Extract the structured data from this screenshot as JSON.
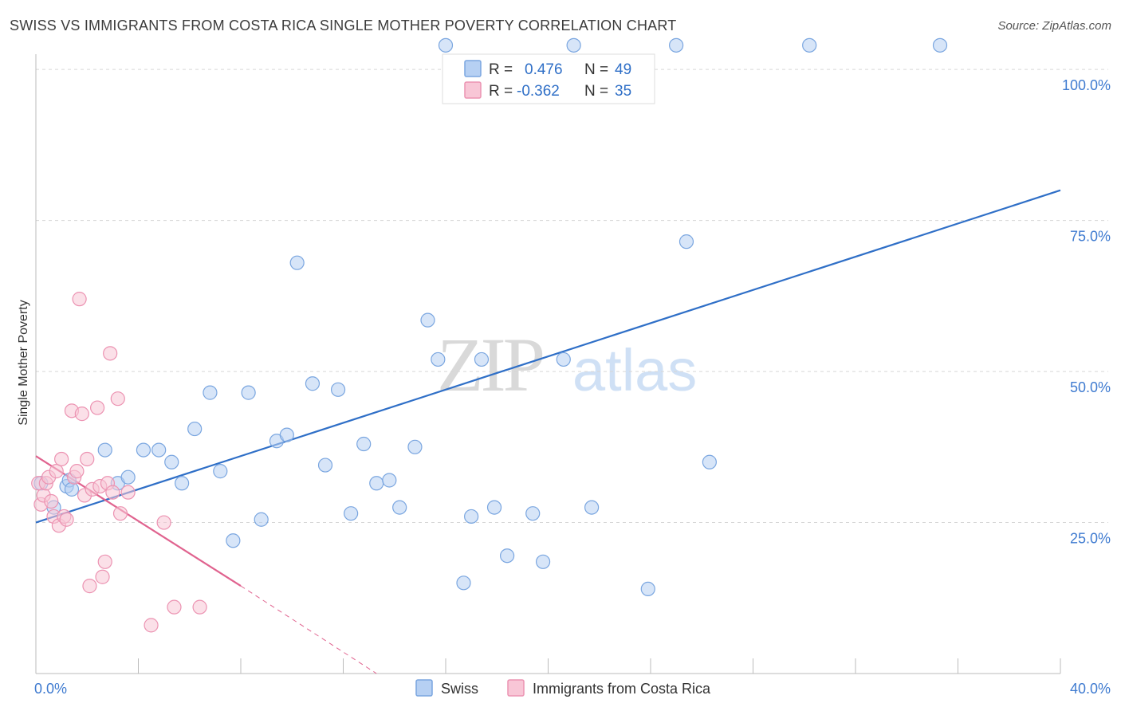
{
  "title": "SWISS VS IMMIGRANTS FROM COSTA RICA SINGLE MOTHER POVERTY CORRELATION CHART",
  "source": "Source: ZipAtlas.com",
  "watermark": {
    "zip": "ZIP",
    "atlas": "atlas"
  },
  "colors": {
    "swiss_fill": "#b6d0f3",
    "swiss_stroke": "#7aa6e0",
    "swiss_line": "#2f6fc7",
    "cr_fill": "#f8c6d6",
    "cr_stroke": "#ec93b2",
    "cr_line": "#e0638f",
    "tick": "#3f7bd0",
    "grid": "#d6d6d6"
  },
  "legend": {
    "rows": [
      {
        "r_label": "R = ",
        "r_value": "0.476",
        "n_label": "N = ",
        "n_value": "49"
      },
      {
        "r_label": "R = ",
        "r_value": "-0.362",
        "n_label": "N = ",
        "n_value": "35"
      }
    ]
  },
  "bottom_legend": [
    "Swiss",
    "Immigrants from Costa Rica"
  ],
  "chart_data": {
    "type": "scatter",
    "title": "SWISS VS IMMIGRANTS FROM COSTA RICA SINGLE MOTHER POVERTY CORRELATION CHART",
    "xlabel": "",
    "ylabel": "Single Mother Poverty",
    "xlim": [
      0,
      40
    ],
    "ylim": [
      0,
      102
    ],
    "x_tick_labels": [
      {
        "value": 0,
        "label": "0.0%"
      },
      {
        "value": 40,
        "label": "40.0%"
      }
    ],
    "x_minor_ticks": [
      0,
      4,
      8,
      12,
      16,
      20,
      24,
      28,
      32,
      36,
      40
    ],
    "y_tick_labels": [
      {
        "value": 25,
        "label": "25.0%"
      },
      {
        "value": 50,
        "label": "50.0%"
      },
      {
        "value": 75,
        "label": "75.0%"
      },
      {
        "value": 100,
        "label": "100.0%"
      }
    ],
    "grid": true,
    "series": [
      {
        "name": "Swiss",
        "points": [
          [
            0.2,
            31.5
          ],
          [
            0.7,
            27.5
          ],
          [
            1.2,
            31
          ],
          [
            1.3,
            32
          ],
          [
            1.4,
            30.5
          ],
          [
            2.7,
            37
          ],
          [
            3.2,
            31.5
          ],
          [
            3.6,
            32.5
          ],
          [
            4.2,
            37
          ],
          [
            4.8,
            37
          ],
          [
            5.3,
            35
          ],
          [
            5.7,
            31.5
          ],
          [
            6.2,
            40.5
          ],
          [
            6.8,
            46.5
          ],
          [
            7.2,
            33.5
          ],
          [
            7.7,
            22
          ],
          [
            8.3,
            46.5
          ],
          [
            8.8,
            25.5
          ],
          [
            9.4,
            38.5
          ],
          [
            9.8,
            39.5
          ],
          [
            10.2,
            68
          ],
          [
            10.8,
            48
          ],
          [
            11.3,
            34.5
          ],
          [
            11.8,
            47
          ],
          [
            12.3,
            26.5
          ],
          [
            12.8,
            38
          ],
          [
            13.3,
            31.5
          ],
          [
            13.8,
            32
          ],
          [
            14.2,
            27.5
          ],
          [
            14.8,
            37.5
          ],
          [
            15.3,
            58.5
          ],
          [
            15.7,
            52
          ],
          [
            16.0,
            104
          ],
          [
            16.7,
            15
          ],
          [
            17.0,
            26
          ],
          [
            17.4,
            52
          ],
          [
            17.9,
            27.5
          ],
          [
            18.4,
            19.5
          ],
          [
            19.4,
            26.5
          ],
          [
            19.8,
            18.5
          ],
          [
            20.6,
            52
          ],
          [
            21.0,
            104
          ],
          [
            21.7,
            27.5
          ],
          [
            23.9,
            14
          ],
          [
            25.0,
            104
          ],
          [
            25.4,
            71.5
          ],
          [
            26.3,
            35
          ],
          [
            30.2,
            104
          ],
          [
            35.3,
            104
          ]
        ]
      },
      {
        "name": "Immigrants from Costa Rica",
        "points": [
          [
            0.1,
            31.5
          ],
          [
            0.2,
            28
          ],
          [
            0.3,
            29.5
          ],
          [
            0.4,
            31.5
          ],
          [
            0.5,
            32.5
          ],
          [
            0.6,
            28.5
          ],
          [
            0.7,
            26
          ],
          [
            0.8,
            33.5
          ],
          [
            0.9,
            24.5
          ],
          [
            1.0,
            35.5
          ],
          [
            1.1,
            26
          ],
          [
            1.2,
            25.5
          ],
          [
            1.4,
            43.5
          ],
          [
            1.5,
            32.5
          ],
          [
            1.6,
            33.5
          ],
          [
            1.7,
            62
          ],
          [
            1.8,
            43
          ],
          [
            1.9,
            29.5
          ],
          [
            2.0,
            35.5
          ],
          [
            2.1,
            14.5
          ],
          [
            2.2,
            30.5
          ],
          [
            2.4,
            44
          ],
          [
            2.5,
            31
          ],
          [
            2.6,
            16
          ],
          [
            2.7,
            18.5
          ],
          [
            2.8,
            31.5
          ],
          [
            2.9,
            53
          ],
          [
            3.0,
            30
          ],
          [
            3.2,
            45.5
          ],
          [
            3.3,
            26.5
          ],
          [
            3.6,
            30
          ],
          [
            4.5,
            8
          ],
          [
            5.0,
            25
          ],
          [
            5.4,
            11
          ],
          [
            6.4,
            11
          ]
        ]
      }
    ],
    "trendlines": [
      {
        "series": "Swiss",
        "x0": 0,
        "y0": 25,
        "x1": 40,
        "y1": 80
      },
      {
        "series": "Immigrants from Costa Rica",
        "x0": 0,
        "y0": 36,
        "x1": 8,
        "y1": 14.5,
        "dashed_to": {
          "x": 13.3,
          "y": 0
        }
      }
    ]
  }
}
